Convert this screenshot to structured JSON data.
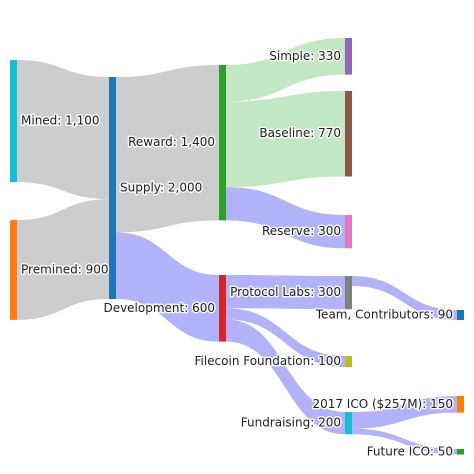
{
  "chart_data": {
    "type": "sankey",
    "nodes": [
      {
        "label": "Mined: 1,100",
        "value": 1100,
        "color": "#17becf"
      },
      {
        "label": "Premined: 900",
        "value": 900,
        "color": "#ff7f0e"
      },
      {
        "label": "Supply: 2,000",
        "value": 2000,
        "color": "#1f77b4"
      },
      {
        "label": "Reward: 1,400",
        "value": 1400,
        "color": "#2ca02c"
      },
      {
        "label": "Development: 600",
        "value": 600,
        "color": "#d62728"
      },
      {
        "label": "Simple: 330",
        "value": 330,
        "color": "#9467bd"
      },
      {
        "label": "Baseline: 770",
        "value": 770,
        "color": "#8c564b"
      },
      {
        "label": "Reserve: 300",
        "value": 300,
        "color": "#e377c2"
      },
      {
        "label": "Protocol Labs: 300",
        "value": 300,
        "color": "#7f7f7f"
      },
      {
        "label": "Filecoin Foundation: 100",
        "value": 100,
        "color": "#bcbd22"
      },
      {
        "label": "Fundraising: 200",
        "value": 200,
        "color": "#17becf"
      },
      {
        "label": "Team, Contributors: 90",
        "value": 90,
        "color": "#1f77b4"
      },
      {
        "label": "2017 ICO ($257M): 150",
        "value": 150,
        "color": "#ff7f0e"
      },
      {
        "label": "Future ICO: 50",
        "value": 50,
        "color": "#2ca02c"
      }
    ],
    "links": [
      {
        "source": 0,
        "target": 2,
        "value": 1100,
        "color": "#c8c8c8"
      },
      {
        "source": 1,
        "target": 2,
        "value": 900,
        "color": "#c8c8c8"
      },
      {
        "source": 2,
        "target": 3,
        "value": 1400,
        "color": "#c8c8c8"
      },
      {
        "source": 2,
        "target": 4,
        "value": 600,
        "color": "#aaaaf8"
      },
      {
        "source": 3,
        "target": 5,
        "value": 330,
        "color": "#bde3bd"
      },
      {
        "source": 3,
        "target": 6,
        "value": 770,
        "color": "#bde3bd"
      },
      {
        "source": 3,
        "target": 7,
        "value": 300,
        "color": "#aaaaf8"
      },
      {
        "source": 4,
        "target": 8,
        "value": 300,
        "color": "#aaaaf8"
      },
      {
        "source": 4,
        "target": 9,
        "value": 100,
        "color": "#aaaaf8"
      },
      {
        "source": 4,
        "target": 10,
        "value": 200,
        "color": "#aaaaf8"
      },
      {
        "source": 8,
        "target": 11,
        "value": 90,
        "color": "#aaaaf8"
      },
      {
        "source": 10,
        "target": 12,
        "value": 150,
        "color": "#aaaaf8"
      },
      {
        "source": 10,
        "target": 13,
        "value": 50,
        "color": "#aaaaf8"
      }
    ]
  }
}
